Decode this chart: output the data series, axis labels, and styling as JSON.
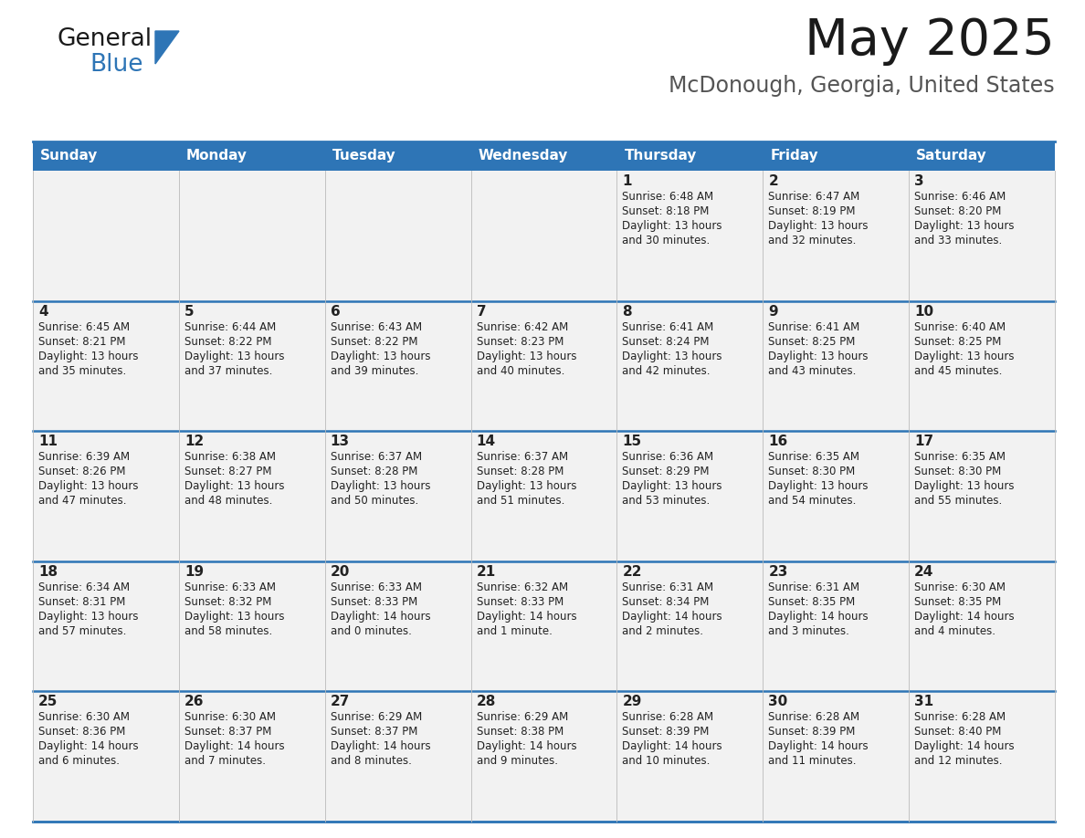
{
  "title": "May 2025",
  "subtitle": "McDonough, Georgia, United States",
  "header_bg": "#2E75B6",
  "header_text_color": "#FFFFFF",
  "cell_bg": "#F2F2F2",
  "row_line_color": "#2E75B6",
  "days_of_week": [
    "Sunday",
    "Monday",
    "Tuesday",
    "Wednesday",
    "Thursday",
    "Friday",
    "Saturday"
  ],
  "calendar": [
    [
      {
        "day": "",
        "sunrise": "",
        "sunset": "",
        "daylight": ""
      },
      {
        "day": "",
        "sunrise": "",
        "sunset": "",
        "daylight": ""
      },
      {
        "day": "",
        "sunrise": "",
        "sunset": "",
        "daylight": ""
      },
      {
        "day": "",
        "sunrise": "",
        "sunset": "",
        "daylight": ""
      },
      {
        "day": "1",
        "sunrise": "6:48 AM",
        "sunset": "8:18 PM",
        "daylight": "13 hours\nand 30 minutes."
      },
      {
        "day": "2",
        "sunrise": "6:47 AM",
        "sunset": "8:19 PM",
        "daylight": "13 hours\nand 32 minutes."
      },
      {
        "day": "3",
        "sunrise": "6:46 AM",
        "sunset": "8:20 PM",
        "daylight": "13 hours\nand 33 minutes."
      }
    ],
    [
      {
        "day": "4",
        "sunrise": "6:45 AM",
        "sunset": "8:21 PM",
        "daylight": "13 hours\nand 35 minutes."
      },
      {
        "day": "5",
        "sunrise": "6:44 AM",
        "sunset": "8:22 PM",
        "daylight": "13 hours\nand 37 minutes."
      },
      {
        "day": "6",
        "sunrise": "6:43 AM",
        "sunset": "8:22 PM",
        "daylight": "13 hours\nand 39 minutes."
      },
      {
        "day": "7",
        "sunrise": "6:42 AM",
        "sunset": "8:23 PM",
        "daylight": "13 hours\nand 40 minutes."
      },
      {
        "day": "8",
        "sunrise": "6:41 AM",
        "sunset": "8:24 PM",
        "daylight": "13 hours\nand 42 minutes."
      },
      {
        "day": "9",
        "sunrise": "6:41 AM",
        "sunset": "8:25 PM",
        "daylight": "13 hours\nand 43 minutes."
      },
      {
        "day": "10",
        "sunrise": "6:40 AM",
        "sunset": "8:25 PM",
        "daylight": "13 hours\nand 45 minutes."
      }
    ],
    [
      {
        "day": "11",
        "sunrise": "6:39 AM",
        "sunset": "8:26 PM",
        "daylight": "13 hours\nand 47 minutes."
      },
      {
        "day": "12",
        "sunrise": "6:38 AM",
        "sunset": "8:27 PM",
        "daylight": "13 hours\nand 48 minutes."
      },
      {
        "day": "13",
        "sunrise": "6:37 AM",
        "sunset": "8:28 PM",
        "daylight": "13 hours\nand 50 minutes."
      },
      {
        "day": "14",
        "sunrise": "6:37 AM",
        "sunset": "8:28 PM",
        "daylight": "13 hours\nand 51 minutes."
      },
      {
        "day": "15",
        "sunrise": "6:36 AM",
        "sunset": "8:29 PM",
        "daylight": "13 hours\nand 53 minutes."
      },
      {
        "day": "16",
        "sunrise": "6:35 AM",
        "sunset": "8:30 PM",
        "daylight": "13 hours\nand 54 minutes."
      },
      {
        "day": "17",
        "sunrise": "6:35 AM",
        "sunset": "8:30 PM",
        "daylight": "13 hours\nand 55 minutes."
      }
    ],
    [
      {
        "day": "18",
        "sunrise": "6:34 AM",
        "sunset": "8:31 PM",
        "daylight": "13 hours\nand 57 minutes."
      },
      {
        "day": "19",
        "sunrise": "6:33 AM",
        "sunset": "8:32 PM",
        "daylight": "13 hours\nand 58 minutes."
      },
      {
        "day": "20",
        "sunrise": "6:33 AM",
        "sunset": "8:33 PM",
        "daylight": "14 hours\nand 0 minutes."
      },
      {
        "day": "21",
        "sunrise": "6:32 AM",
        "sunset": "8:33 PM",
        "daylight": "14 hours\nand 1 minute."
      },
      {
        "day": "22",
        "sunrise": "6:31 AM",
        "sunset": "8:34 PM",
        "daylight": "14 hours\nand 2 minutes."
      },
      {
        "day": "23",
        "sunrise": "6:31 AM",
        "sunset": "8:35 PM",
        "daylight": "14 hours\nand 3 minutes."
      },
      {
        "day": "24",
        "sunrise": "6:30 AM",
        "sunset": "8:35 PM",
        "daylight": "14 hours\nand 4 minutes."
      }
    ],
    [
      {
        "day": "25",
        "sunrise": "6:30 AM",
        "sunset": "8:36 PM",
        "daylight": "14 hours\nand 6 minutes."
      },
      {
        "day": "26",
        "sunrise": "6:30 AM",
        "sunset": "8:37 PM",
        "daylight": "14 hours\nand 7 minutes."
      },
      {
        "day": "27",
        "sunrise": "6:29 AM",
        "sunset": "8:37 PM",
        "daylight": "14 hours\nand 8 minutes."
      },
      {
        "day": "28",
        "sunrise": "6:29 AM",
        "sunset": "8:38 PM",
        "daylight": "14 hours\nand 9 minutes."
      },
      {
        "day": "29",
        "sunrise": "6:28 AM",
        "sunset": "8:39 PM",
        "daylight": "14 hours\nand 10 minutes."
      },
      {
        "day": "30",
        "sunrise": "6:28 AM",
        "sunset": "8:39 PM",
        "daylight": "14 hours\nand 11 minutes."
      },
      {
        "day": "31",
        "sunrise": "6:28 AM",
        "sunset": "8:40 PM",
        "daylight": "14 hours\nand 12 minutes."
      }
    ]
  ],
  "logo_text1": "General",
  "logo_text2": "Blue",
  "logo_triangle_color": "#2E75B6"
}
